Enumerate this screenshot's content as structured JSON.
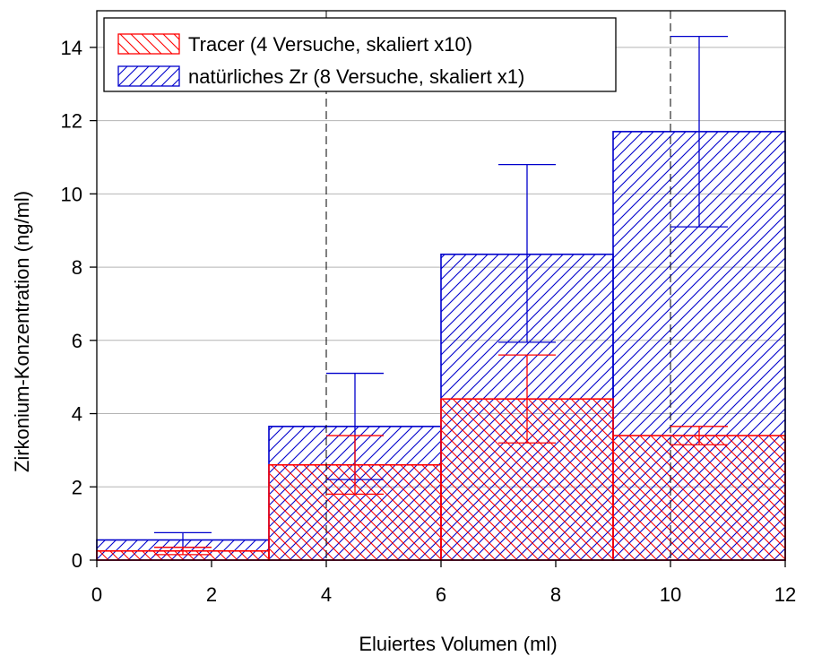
{
  "chart_data": {
    "type": "bar",
    "subtype": "histogram-overlay",
    "xlabel": "Eluiertes Volumen (ml)",
    "ylabel": "Zirkonium-Konzentration (ng/ml)",
    "xlim": [
      0,
      12
    ],
    "ylim": [
      0,
      15
    ],
    "x_ticks": [
      0,
      2,
      4,
      6,
      8,
      10,
      12
    ],
    "y_ticks": [
      0,
      2,
      4,
      6,
      8,
      10,
      12,
      14
    ],
    "grid": "horizontal",
    "reference_lines_x": [
      4,
      10
    ],
    "legend_position": "top-left",
    "bins": [
      [
        0,
        3
      ],
      [
        3,
        6
      ],
      [
        6,
        9
      ],
      [
        9,
        12
      ]
    ],
    "series": [
      {
        "name": "natürliches Zr (8 Versuche, skaliert x1)",
        "color": "#0000cc",
        "hatch": "forward-diagonal",
        "values": [
          0.55,
          3.65,
          8.35,
          11.7
        ],
        "error_x": [
          1.5,
          4.5,
          7.5,
          10.5
        ],
        "error_low": [
          0.35,
          2.2,
          5.95,
          9.1
        ],
        "error_high": [
          0.75,
          5.1,
          10.8,
          14.3
        ]
      },
      {
        "name": "Tracer (4 Versuche, skaliert x10)",
        "color": "#ff0000",
        "hatch": "back-diagonal",
        "values": [
          0.25,
          2.6,
          4.4,
          3.4
        ],
        "error_x": [
          1.5,
          4.5,
          7.5,
          10.5
        ],
        "error_low": [
          0.15,
          1.8,
          3.2,
          3.15
        ],
        "error_high": [
          0.35,
          3.4,
          5.6,
          3.65
        ]
      }
    ]
  }
}
